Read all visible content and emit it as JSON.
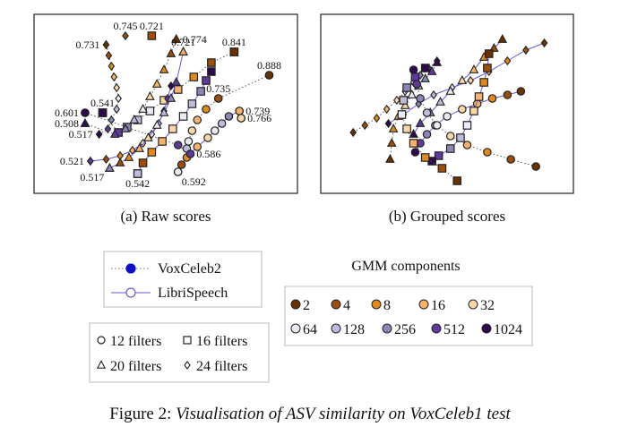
{
  "chart_data": [
    {
      "type": "scatter",
      "caption": "(a) Raw scores",
      "points": [
        {
          "x": 3.6,
          "y": 7.8,
          "label": "0.731",
          "label_pos": "left",
          "marker": "diamond",
          "comp": 2,
          "dataset": "VoxCeleb2"
        },
        {
          "x": 4.7,
          "y": 8.3,
          "label": "0.745",
          "label_pos": "above",
          "marker": "diamond",
          "comp": 4,
          "dataset": "VoxCeleb2"
        },
        {
          "x": 6.2,
          "y": 8.3,
          "label": "0.721",
          "label_pos": "above",
          "marker": "square",
          "comp": 4,
          "dataset": "VoxCeleb2"
        },
        {
          "x": 7.6,
          "y": 8.1,
          "label": "0.774",
          "label_pos": "right",
          "marker": "triangle",
          "comp": 2,
          "dataset": "VoxCeleb2"
        },
        {
          "x": 8.0,
          "y": 7.4,
          "label": "0.721",
          "label_pos": "above",
          "marker": "triangle",
          "comp": 16,
          "dataset": "LibriSpeech"
        },
        {
          "x": 10.9,
          "y": 7.4,
          "label": "0.841",
          "label_pos": "above",
          "marker": "square",
          "comp": 2,
          "dataset": "VoxCeleb2"
        },
        {
          "x": 12.9,
          "y": 6.1,
          "label": "0.888",
          "label_pos": "above",
          "marker": "circle",
          "comp": 2,
          "dataset": "VoxCeleb2"
        },
        {
          "x": 10.0,
          "y": 4.8,
          "label": "0.735",
          "label_pos": "above",
          "marker": "circle",
          "comp": 4,
          "dataset": "VoxCeleb2"
        },
        {
          "x": 11.2,
          "y": 4.1,
          "label": "0.739",
          "label_pos": "right",
          "marker": "circle",
          "comp": 16,
          "dataset": "LibriSpeech"
        },
        {
          "x": 11.3,
          "y": 3.7,
          "label": "0.766",
          "label_pos": "right",
          "marker": "circle",
          "comp": 32,
          "dataset": "LibriSpeech"
        },
        {
          "x": 2.4,
          "y": 4.0,
          "label": "0.601",
          "label_pos": "left",
          "marker": "circle",
          "comp": 1024,
          "dataset": "VoxCeleb2"
        },
        {
          "x": 3.4,
          "y": 4.0,
          "label": "0.541",
          "label_pos": "above",
          "marker": "square",
          "comp": 1024,
          "dataset": "VoxCeleb2"
        },
        {
          "x": 2.4,
          "y": 3.4,
          "label": "0.508",
          "label_pos": "left",
          "marker": "triangle",
          "comp": 1024,
          "dataset": "VoxCeleb2"
        },
        {
          "x": 3.2,
          "y": 2.8,
          "label": "0.517",
          "label_pos": "left",
          "marker": "diamond",
          "comp": 1024,
          "dataset": "VoxCeleb2"
        },
        {
          "x": 2.7,
          "y": 1.3,
          "label": "0.521",
          "label_pos": "left",
          "marker": "diamond",
          "comp": 512,
          "dataset": "LibriSpeech"
        },
        {
          "x": 3.8,
          "y": 0.9,
          "label": "0.517",
          "label_pos": "below-left",
          "marker": "triangle",
          "comp": 256,
          "dataset": "LibriSpeech"
        },
        {
          "x": 5.4,
          "y": 0.6,
          "label": "0.542",
          "label_pos": "below",
          "marker": "square",
          "comp": 128,
          "dataset": "LibriSpeech"
        },
        {
          "x": 7.7,
          "y": 0.7,
          "label": "0.592",
          "label_pos": "below-right",
          "marker": "circle",
          "comp": 64,
          "dataset": "LibriSpeech"
        },
        {
          "x": 8.4,
          "y": 1.7,
          "label": "0.586",
          "label_pos": "right",
          "marker": "circle",
          "comp": 512,
          "dataset": "VoxCeleb2"
        }
      ],
      "paths": [
        {
          "marker": "diamond",
          "dataset": "VoxCeleb2",
          "points": [
            [
              3.6,
              7.8
            ],
            [
              3.75,
              7.2
            ],
            [
              3.9,
              6.6
            ],
            [
              4.05,
              6.0
            ],
            [
              4.2,
              5.4
            ],
            [
              4.3,
              4.8
            ],
            [
              4.2,
              4.2
            ],
            [
              3.9,
              3.6
            ],
            [
              3.7,
              3.1
            ],
            [
              3.2,
              2.8
            ]
          ]
        },
        {
          "marker": "square",
          "dataset": "VoxCeleb2",
          "points": [
            [
              10.9,
              7.4
            ],
            [
              9.6,
              6.8
            ],
            [
              8.6,
              6.0
            ],
            [
              7.7,
              5.3
            ],
            [
              6.9,
              4.7
            ],
            [
              6.1,
              4.1
            ],
            [
              5.4,
              3.6
            ],
            [
              4.8,
              3.2
            ],
            [
              4.3,
              2.9
            ],
            [
              3.4,
              4.0
            ]
          ]
        },
        {
          "marker": "triangle",
          "dataset": "VoxCeleb2",
          "points": [
            [
              7.6,
              8.1
            ],
            [
              7.3,
              7.3
            ],
            [
              6.9,
              6.4
            ],
            [
              6.5,
              5.6
            ],
            [
              6.1,
              4.9
            ],
            [
              5.7,
              4.2
            ],
            [
              5.2,
              3.6
            ],
            [
              4.7,
              3.1
            ],
            [
              4.1,
              2.8
            ],
            [
              2.4,
              3.4
            ]
          ]
        },
        {
          "marker": "circle",
          "dataset": "VoxCeleb2",
          "points": [
            [
              12.9,
              6.1
            ],
            [
              10.0,
              4.8
            ],
            [
              9.3,
              4.2
            ],
            [
              8.8,
              3.6
            ],
            [
              8.5,
              3.0
            ],
            [
              8.3,
              2.4
            ],
            [
              8.2,
              2.0
            ],
            [
              8.4,
              1.7
            ],
            [
              7.7,
              2.2
            ],
            [
              2.4,
              4.0
            ]
          ]
        },
        {
          "marker": "diamond",
          "dataset": "LibriSpeech",
          "points": [
            [
              2.7,
              1.3
            ],
            [
              3.6,
              1.4
            ],
            [
              4.4,
              1.6
            ],
            [
              5.1,
              1.9
            ],
            [
              5.7,
              2.3
            ],
            [
              6.2,
              2.8
            ],
            [
              6.6,
              3.4
            ],
            [
              6.9,
              4.1
            ],
            [
              7.1,
              4.8
            ],
            [
              7.3,
              5.5
            ]
          ]
        },
        {
          "marker": "triangle",
          "dataset": "LibriSpeech",
          "points": [
            [
              3.8,
              0.9
            ],
            [
              4.4,
              1.2
            ],
            [
              4.9,
              1.5
            ],
            [
              5.5,
              2.0
            ],
            [
              6.0,
              2.6
            ],
            [
              6.5,
              3.3
            ],
            [
              6.9,
              4.0
            ],
            [
              7.3,
              4.8
            ],
            [
              7.6,
              5.7
            ],
            [
              8.0,
              7.4
            ]
          ]
        },
        {
          "marker": "square",
          "dataset": "LibriSpeech",
          "points": [
            [
              5.4,
              0.6
            ],
            [
              5.7,
              1.2
            ],
            [
              6.2,
              1.8
            ],
            [
              6.8,
              2.4
            ],
            [
              7.4,
              3.1
            ],
            [
              8.0,
              3.8
            ],
            [
              8.5,
              4.5
            ],
            [
              9.0,
              5.2
            ],
            [
              9.3,
              5.8
            ],
            [
              9.6,
              6.3
            ]
          ]
        },
        {
          "marker": "circle",
          "dataset": "LibriSpeech",
          "points": [
            [
              7.7,
              0.7
            ],
            [
              7.9,
              1.1
            ],
            [
              8.2,
              1.5
            ],
            [
              8.8,
              2.1
            ],
            [
              9.4,
              2.6
            ],
            [
              9.8,
              3.0
            ],
            [
              10.2,
              3.4
            ],
            [
              10.6,
              3.8
            ],
            [
              11.2,
              4.1
            ],
            [
              11.3,
              3.7
            ]
          ]
        }
      ]
    },
    {
      "type": "scatter",
      "caption": "(b) Grouped scores",
      "paths": [
        {
          "marker": "diamond",
          "dataset": "LibriSpeech",
          "points": [
            [
              12.8,
              7.9
            ],
            [
              11.7,
              7.5
            ],
            [
              10.6,
              6.9
            ],
            [
              9.5,
              6.3
            ],
            [
              8.4,
              5.8
            ],
            [
              7.3,
              5.4
            ],
            [
              6.2,
              5.0
            ],
            [
              5.3,
              4.5
            ],
            [
              4.4,
              3.9
            ],
            [
              3.5,
              3.4
            ]
          ]
        },
        {
          "marker": "triangle",
          "dataset": "LibriSpeech",
          "points": [
            [
              10.3,
              8.1
            ],
            [
              9.8,
              7.6
            ],
            [
              9.2,
              7.1
            ],
            [
              8.6,
              6.4
            ],
            [
              7.9,
              5.8
            ],
            [
              7.2,
              5.2
            ],
            [
              6.6,
              4.6
            ],
            [
              6.0,
              4.0
            ],
            [
              5.4,
              3.4
            ],
            [
              5.0,
              2.8
            ]
          ]
        },
        {
          "marker": "circle",
          "dataset": "LibriSpeech",
          "points": [
            [
              11.4,
              5.2
            ],
            [
              10.6,
              5.0
            ],
            [
              9.7,
              4.8
            ],
            [
              8.8,
              4.5
            ],
            [
              7.9,
              4.2
            ],
            [
              7.0,
              3.8
            ],
            [
              6.3,
              3.3
            ],
            [
              5.8,
              2.8
            ],
            [
              5.4,
              2.3
            ],
            [
              5.1,
              1.8
            ]
          ]
        },
        {
          "marker": "square",
          "dataset": "LibriSpeech",
          "points": [
            [
              9.5,
              7.3
            ],
            [
              9.4,
              6.5
            ],
            [
              9.2,
              5.7
            ],
            [
              8.9,
              4.9
            ],
            [
              8.6,
              4.1
            ],
            [
              8.2,
              3.3
            ],
            [
              7.8,
              2.6
            ],
            [
              7.2,
              2.0
            ],
            [
              6.5,
              1.6
            ],
            [
              6.1,
              1.3
            ]
          ]
        },
        {
          "marker": "diamond",
          "dataset": "VoxCeleb2",
          "points": [
            [
              1.4,
              2.9
            ],
            [
              2.1,
              3.3
            ],
            [
              2.8,
              3.7
            ],
            [
              3.4,
              4.2
            ],
            [
              4.0,
              4.7
            ],
            [
              4.5,
              5.2
            ],
            [
              5.0,
              5.7
            ],
            [
              5.4,
              6.1
            ],
            [
              5.9,
              6.5
            ],
            [
              6.4,
              6.9
            ]
          ]
        },
        {
          "marker": "triangle",
          "dataset": "VoxCeleb2",
          "points": [
            [
              3.6,
              1.4
            ],
            [
              3.7,
              2.3
            ],
            [
              3.8,
              3.1
            ],
            [
              4.1,
              3.8
            ],
            [
              4.5,
              4.4
            ],
            [
              4.9,
              5.0
            ],
            [
              5.3,
              5.5
            ],
            [
              5.7,
              5.9
            ],
            [
              6.1,
              6.3
            ],
            [
              6.4,
              6.8
            ]
          ]
        },
        {
          "marker": "square",
          "dataset": "VoxCeleb2",
          "points": [
            [
              7.6,
              0.2
            ],
            [
              6.7,
              0.9
            ],
            [
              5.7,
              1.5
            ],
            [
              5.0,
              2.3
            ],
            [
              4.6,
              3.1
            ],
            [
              4.3,
              3.9
            ],
            [
              4.4,
              4.7
            ],
            [
              4.6,
              5.4
            ],
            [
              5.1,
              6.0
            ],
            [
              5.7,
              6.5
            ]
          ]
        },
        {
          "marker": "circle",
          "dataset": "VoxCeleb2",
          "points": [
            [
              12.3,
              1.0
            ],
            [
              10.8,
              1.4
            ],
            [
              9.4,
              1.8
            ],
            [
              8.2,
              2.2
            ],
            [
              7.2,
              2.7
            ],
            [
              6.4,
              3.3
            ],
            [
              5.8,
              4.0
            ],
            [
              5.4,
              4.8
            ],
            [
              5.2,
              5.6
            ],
            [
              5.0,
              6.4
            ]
          ]
        }
      ]
    }
  ],
  "colors": {
    "comp_2": "#6b3200",
    "comp_4": "#9a4f10",
    "comp_8": "#e08a1e",
    "comp_16": "#f6b26b",
    "comp_32": "#fbd7a8",
    "comp_64": "#eceaf4",
    "comp_128": "#bcbbdb",
    "comp_256": "#8a86b8",
    "comp_512": "#5e3a9a",
    "comp_1024": "#2d0a4e",
    "voxceleb_line": "#555555",
    "librispeech_line": "#6a5acd",
    "voxceleb_legend_marker": "#1010c8"
  },
  "legend": {
    "datasets": [
      {
        "label": "VoxCeleb2",
        "style": "dotted"
      },
      {
        "label": "LibriSpeech",
        "style": "solid"
      }
    ],
    "markers": [
      {
        "label": "12 filters",
        "marker": "circle"
      },
      {
        "label": "16 filters",
        "marker": "square"
      },
      {
        "label": "20 filters",
        "marker": "triangle"
      },
      {
        "label": "24 filters",
        "marker": "diamond"
      }
    ],
    "gmm_title": "GMM components",
    "gmm": [
      {
        "label": "2",
        "comp": 2
      },
      {
        "label": "4",
        "comp": 4
      },
      {
        "label": "8",
        "comp": 8
      },
      {
        "label": "16",
        "comp": 16
      },
      {
        "label": "32",
        "comp": 32
      },
      {
        "label": "64",
        "comp": 64
      },
      {
        "label": "128",
        "comp": 128
      },
      {
        "label": "256",
        "comp": 256
      },
      {
        "label": "512",
        "comp": 512
      },
      {
        "label": "1024",
        "comp": 1024
      }
    ]
  },
  "caption": {
    "prefix": "Figure 2:",
    "text": "Visualisation of ASV similarity on VoxCeleb1 test"
  }
}
